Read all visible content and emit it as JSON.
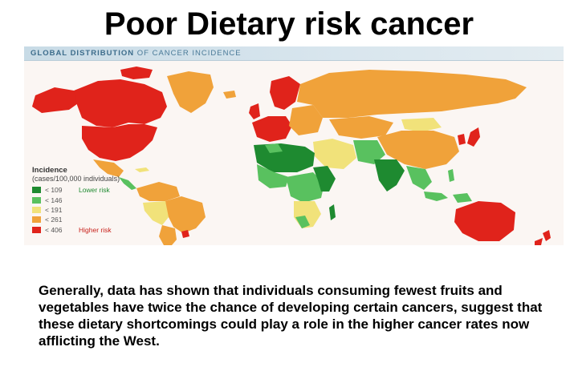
{
  "title": "Poor Dietary risk cancer",
  "map": {
    "header_bold": "GLOBAL DISTRIBUTION",
    "header_rest": " OF CANCER INCIDENCE",
    "legend": {
      "title": "Incidence",
      "subtitle": "(cases/100,000 individuals)",
      "items": [
        {
          "label": "< 109",
          "color": "#1e8a30",
          "note": "Lower risk",
          "note_color": "#1e8a30"
        },
        {
          "label": "< 146",
          "color": "#59c15f",
          "note": "",
          "note_color": ""
        },
        {
          "label": "< 191",
          "color": "#f1e27a",
          "note": "",
          "note_color": ""
        },
        {
          "label": "< 261",
          "color": "#f0a23a",
          "note": "",
          "note_color": ""
        },
        {
          "label": "< 406",
          "color": "#e0231b",
          "note": "Higher risk",
          "note_color": "#c8201a"
        }
      ]
    },
    "colors": {
      "background": "#fbf6f3",
      "red": "#e0231b",
      "orange": "#f0a23a",
      "yellow": "#f1e27a",
      "light_green": "#59c15f",
      "dark_green": "#1e8a30"
    }
  },
  "body_text": "Generally, data has shown that individuals consuming fewest fruits and vegetables have twice the chance of developing certain cancers, suggest that these dietary shortcomings could play a role in the higher cancer rates now afflicting the West."
}
